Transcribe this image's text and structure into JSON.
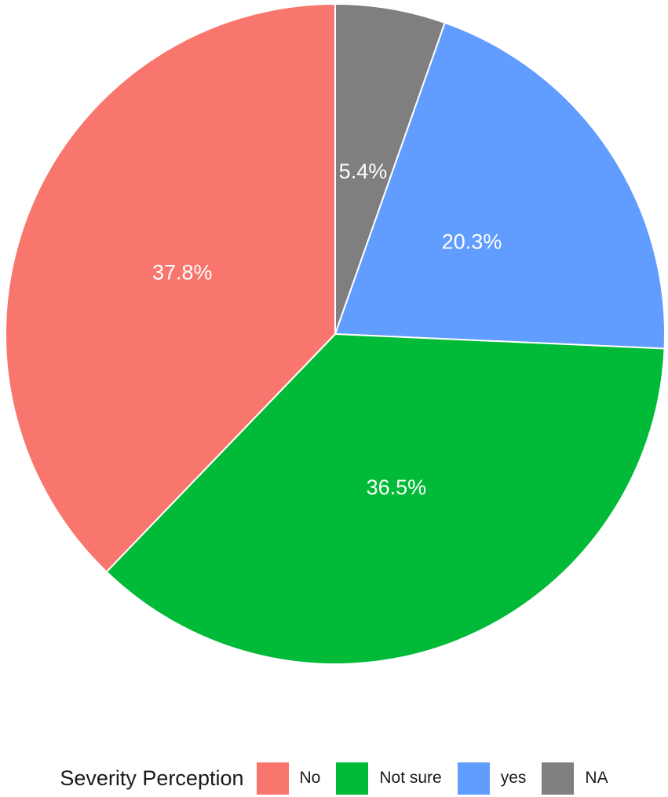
{
  "chart_data": {
    "type": "pie",
    "legend_title": "Severity Perception",
    "legend_position": "bottom",
    "categories": [
      "No",
      "Not sure",
      "yes",
      "NA"
    ],
    "values": [
      37.8,
      36.5,
      20.3,
      5.4
    ],
    "labels": [
      "37.8%",
      "36.5%",
      "20.3%",
      "5.4%"
    ],
    "colors": [
      "#F8766D",
      "#00BA38",
      "#619CFF",
      "#7F7F7F"
    ]
  }
}
